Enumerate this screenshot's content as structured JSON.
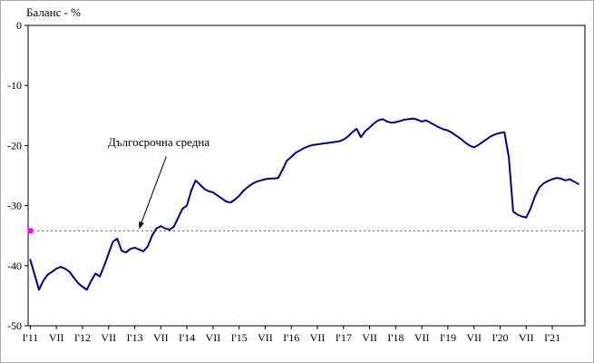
{
  "header": {
    "title": "Баланс - %"
  },
  "annotation": {
    "label": "Дългосрочна средна"
  },
  "chart_data": {
    "type": "line",
    "title": "Баланс - %",
    "ylabel": "Баланс - %",
    "xlabel": "",
    "ylim": [
      -50,
      0
    ],
    "yticks": [
      "0",
      "-10",
      "-20",
      "-30",
      "-40",
      "-50"
    ],
    "ytick_values": [
      0,
      -10,
      -20,
      -30,
      -40,
      -50
    ],
    "grid": false,
    "legend_position": "none",
    "x_start": "2011-01",
    "x_frequency": "monthly",
    "x_tick_labels": [
      "I'11",
      "VII",
      "I'12",
      "VII",
      "I'13",
      "VII",
      "I'14",
      "VII",
      "I'15",
      "VII",
      "I'16",
      "VII",
      "I'17",
      "VII",
      "I'18",
      "VII",
      "I'19",
      "VII",
      "I'20",
      "VII",
      "I'21"
    ],
    "x_ticks_every_n_months": 6,
    "long_term_average": -34.2,
    "annotation_text": "Дългосрочна средна",
    "average_line": {
      "style": "dotted",
      "color": "#606060"
    },
    "start_marker": {
      "shape": "square",
      "color": "#FF00FF"
    },
    "series": [
      {
        "name": "Баланс",
        "color": "#000080",
        "values": [
          -39.0,
          -41.5,
          -44.0,
          -42.5,
          -41.5,
          -41.0,
          -40.5,
          -40.2,
          -40.5,
          -41.0,
          -42.0,
          -42.9,
          -43.5,
          -44.0,
          -42.5,
          -41.3,
          -41.8,
          -40.0,
          -38.0,
          -36.0,
          -35.5,
          -37.5,
          -37.8,
          -37.2,
          -37.0,
          -37.3,
          -37.6,
          -36.8,
          -35.0,
          -33.8,
          -33.4,
          -33.8,
          -34.0,
          -33.5,
          -32.0,
          -30.5,
          -30.0,
          -27.5,
          -25.8,
          -26.5,
          -27.2,
          -27.6,
          -27.8,
          -28.3,
          -28.8,
          -29.3,
          -29.5,
          -29.0,
          -28.4,
          -27.5,
          -26.9,
          -26.4,
          -26.0,
          -25.8,
          -25.6,
          -25.5,
          -25.5,
          -25.4,
          -24.0,
          -22.5,
          -21.9,
          -21.2,
          -20.8,
          -20.4,
          -20.1,
          -19.9,
          -19.8,
          -19.7,
          -19.6,
          -19.5,
          -19.4,
          -19.3,
          -19.0,
          -18.5,
          -17.8,
          -17.2,
          -18.6,
          -17.6,
          -17.0,
          -16.3,
          -15.8,
          -15.6,
          -16.0,
          -16.2,
          -16.1,
          -15.9,
          -15.7,
          -15.6,
          -15.5,
          -15.7,
          -16.0,
          -15.8,
          -16.2,
          -16.6,
          -17.0,
          -17.3,
          -17.5,
          -17.9,
          -18.4,
          -18.9,
          -19.5,
          -20.0,
          -20.3,
          -19.9,
          -19.4,
          -18.9,
          -18.4,
          -18.1,
          -17.9,
          -17.8,
          -22.0,
          -31.0,
          -31.5,
          -31.8,
          -32.0,
          -30.5,
          -28.5,
          -27.0,
          -26.3,
          -25.9,
          -25.6,
          -25.4,
          -25.5,
          -25.8,
          -25.6,
          -26.0,
          -26.4
        ]
      }
    ]
  }
}
